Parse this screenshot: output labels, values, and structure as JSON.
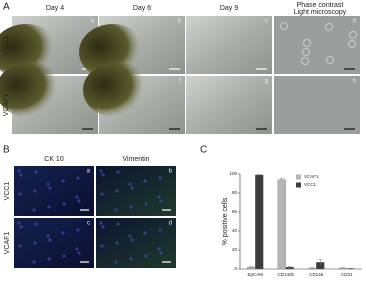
{
  "panel_a": {
    "label": "A",
    "columns": [
      "Day 4",
      "Day 6",
      "Day 9"
    ],
    "last_column_lines": [
      "Phase contrast",
      "Light microscopy"
    ],
    "rows": [
      "VCC1",
      "VCAF1"
    ],
    "letters": [
      "a",
      "b",
      "c",
      "d",
      "e",
      "f",
      "g",
      "h"
    ]
  },
  "panel_b": {
    "label": "B",
    "columns": [
      "CK 10",
      "Vimentin"
    ],
    "rows": [
      "VCC1",
      "VCAF1"
    ],
    "letters": [
      "a",
      "b",
      "c",
      "d"
    ]
  },
  "panel_c": {
    "label": "C"
  },
  "chart_data": {
    "type": "bar",
    "y_label": "% positive cells",
    "categories": [
      "EpCAM",
      "CD140b",
      "CD146",
      "CD31"
    ],
    "series": [
      {
        "name": "VCAF1",
        "color": "#b5b5b5",
        "values": [
          2,
          94,
          1,
          1
        ],
        "errors": [
          0.5,
          1,
          0.5,
          0.5
        ]
      },
      {
        "name": "VCC1",
        "color": "#3d3d3d",
        "values": [
          99,
          2,
          7,
          0.5
        ],
        "errors": [
          0.5,
          0.5,
          3,
          0.3
        ]
      }
    ],
    "ylim": [
      0,
      100
    ],
    "yticks": [
      0,
      20,
      40,
      60,
      80,
      100
    ],
    "legend": "upper-right"
  }
}
